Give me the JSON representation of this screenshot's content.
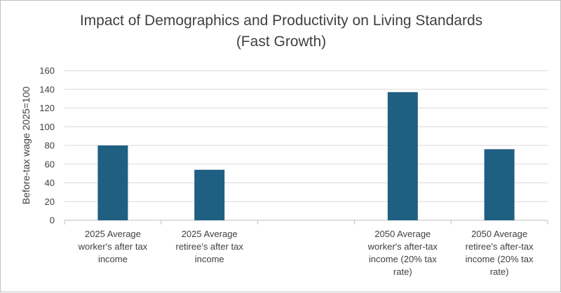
{
  "chart_data": {
    "type": "bar",
    "title_line1": "Impact of Demographics and Productivity on Living Standards",
    "title_line2": "(Fast Growth)",
    "ylabel": "Before-tax wage 2025=100",
    "ylim": [
      0,
      160
    ],
    "yticks": [
      "0",
      "20",
      "40",
      "60",
      "80",
      "100",
      "120",
      "140",
      "160"
    ],
    "categories": [
      "2025 Average worker's after tax income",
      "2025 Average retiree's after tax income",
      "",
      "2050 Average worker's after-tax income (20% tax rate)",
      "2050 Average retiree's after-tax income (20% tax rate)"
    ],
    "values": [
      80,
      54,
      null,
      137,
      76
    ],
    "bar_color": "#1f5f82",
    "grid": true
  }
}
